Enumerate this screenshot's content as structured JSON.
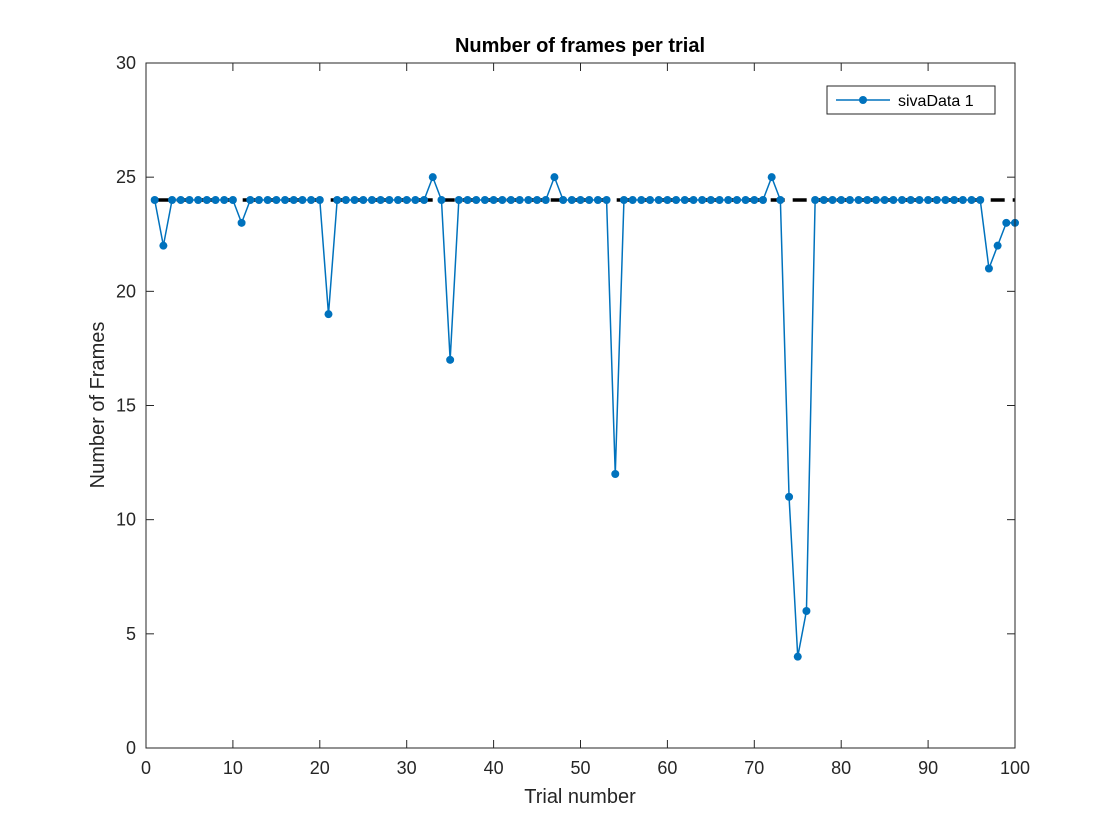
{
  "chart_data": {
    "type": "line",
    "title": "Number of frames per trial",
    "xlabel": "Trial number",
    "ylabel": "Number of Frames",
    "xlim": [
      0,
      100
    ],
    "ylim": [
      0,
      30
    ],
    "xticks": [
      0,
      10,
      20,
      30,
      40,
      50,
      60,
      70,
      80,
      90,
      100
    ],
    "yticks": [
      0,
      5,
      10,
      15,
      20,
      25,
      30
    ],
    "grid": false,
    "legend_position": "top-right",
    "series": [
      {
        "name": "sivaData 1",
        "style": "line-with-markers",
        "color": "#0072BD",
        "x": [
          1,
          2,
          3,
          4,
          5,
          6,
          7,
          8,
          9,
          10,
          11,
          12,
          13,
          14,
          15,
          16,
          17,
          18,
          19,
          20,
          21,
          22,
          23,
          24,
          25,
          26,
          27,
          28,
          29,
          30,
          31,
          32,
          33,
          34,
          35,
          36,
          37,
          38,
          39,
          40,
          41,
          42,
          43,
          44,
          45,
          46,
          47,
          48,
          49,
          50,
          51,
          52,
          53,
          54,
          55,
          56,
          57,
          58,
          59,
          60,
          61,
          62,
          63,
          64,
          65,
          66,
          67,
          68,
          69,
          70,
          71,
          72,
          73,
          74,
          75,
          76,
          77,
          78,
          79,
          80,
          81,
          82,
          83,
          84,
          85,
          86,
          87,
          88,
          89,
          90,
          91,
          92,
          93,
          94,
          95,
          96,
          97,
          98,
          99,
          100
        ],
        "y": [
          24,
          22,
          24,
          24,
          24,
          24,
          24,
          24,
          24,
          24,
          23,
          24,
          24,
          24,
          24,
          24,
          24,
          24,
          24,
          24,
          19,
          24,
          24,
          24,
          24,
          24,
          24,
          24,
          24,
          24,
          24,
          24,
          25,
          24,
          17,
          24,
          24,
          24,
          24,
          24,
          24,
          24,
          24,
          24,
          24,
          24,
          25,
          24,
          24,
          24,
          24,
          24,
          24,
          12,
          24,
          24,
          24,
          24,
          24,
          24,
          24,
          24,
          24,
          24,
          24,
          24,
          24,
          24,
          24,
          24,
          24,
          25,
          24,
          11,
          4,
          6,
          24,
          24,
          24,
          24,
          24,
          24,
          24,
          24,
          24,
          24,
          24,
          24,
          24,
          24,
          24,
          24,
          24,
          24,
          24,
          24,
          21,
          22,
          23,
          23
        ]
      },
      {
        "style": "dashed-line",
        "color": "#000000",
        "x": [
          1,
          100
        ],
        "y": [
          24,
          24
        ]
      }
    ]
  }
}
